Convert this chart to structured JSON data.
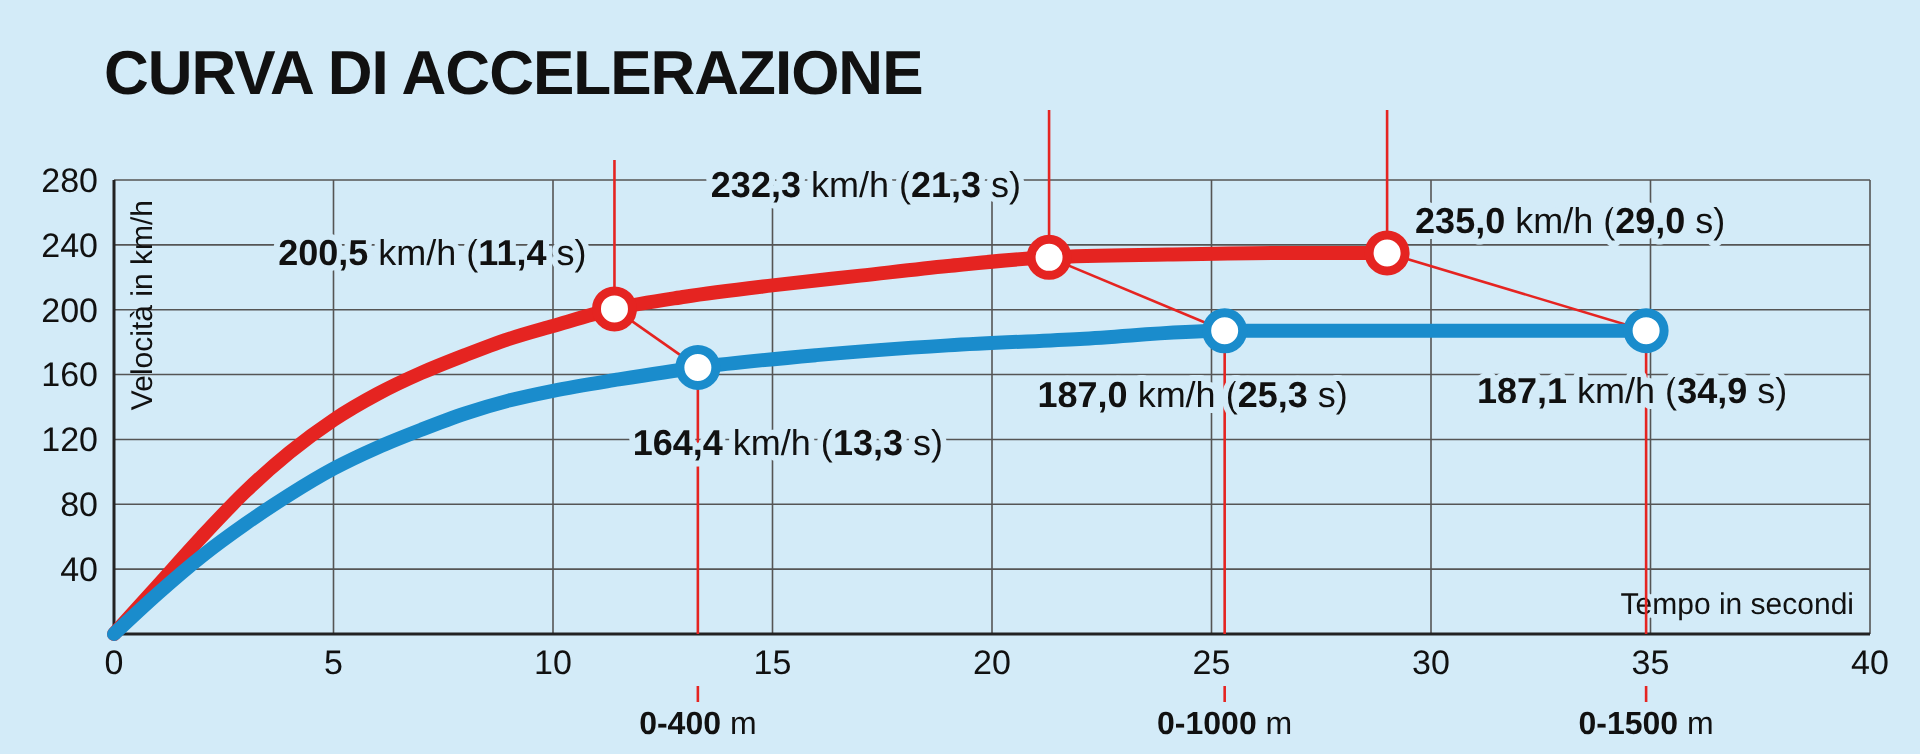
{
  "chart_data": {
    "type": "line",
    "title": "CURVA DI ACCELERAZIONE",
    "xlabel": "Tempo in secondi",
    "ylabel": "Velocità in km/h",
    "xlim": [
      0,
      40
    ],
    "xticks": [
      0,
      5,
      10,
      15,
      20,
      25,
      30,
      35,
      40
    ],
    "ylim": [
      0,
      280
    ],
    "yticks": [
      40,
      80,
      120,
      160,
      200,
      240,
      280
    ],
    "grid": true,
    "line_style": "solid",
    "series": [
      {
        "type": "line",
        "color": "#e52421",
        "x": [
          0,
          1,
          2,
          3,
          4,
          5,
          6,
          7,
          8,
          9,
          10,
          11.4,
          13,
          15,
          17,
          19,
          21.3,
          24,
          27,
          29
        ],
        "values": [
          0,
          30,
          60,
          88,
          112,
          132,
          148,
          161,
          172,
          182,
          190,
          200.5,
          208,
          215,
          221,
          227,
          232.3,
          234,
          235,
          235
        ]
      },
      {
        "type": "line",
        "color": "#1a8ccc",
        "x": [
          0,
          1,
          2,
          3,
          4,
          5,
          6,
          7,
          8,
          9,
          10,
          11.5,
          13.3,
          16,
          19,
          22,
          25.3,
          30,
          34.9
        ],
        "values": [
          0,
          25,
          48,
          68,
          86,
          102,
          115,
          126,
          136,
          144,
          150,
          157,
          164.4,
          172,
          178,
          182,
          187,
          187,
          187.1
        ]
      },
      {
        "type": "scatter",
        "marker": "circle",
        "color": "#e52421",
        "x": [
          11.4,
          21.3,
          29
        ],
        "values": [
          200.5,
          232.3,
          235
        ]
      },
      {
        "type": "scatter",
        "marker": "circle",
        "color": "#1a8ccc",
        "x": [
          13.3,
          25.3,
          34.9
        ],
        "values": [
          164.4,
          187,
          187.1
        ]
      }
    ],
    "annotations": [
      {
        "text": "200,5 km/h (11,4 s)",
        "x": 11.4,
        "y": 200.5
      },
      {
        "text": "232,3 km/h (21,3 s)",
        "x": 21.3,
        "y": 232.3
      },
      {
        "text": "235,0 km/h (29,0 s)",
        "x": 29,
        "y": 235
      },
      {
        "text": "164,4 km/h (13,3 s)",
        "x": 13.3,
        "y": 164.4
      },
      {
        "text": "187,0 km/h (25,3 s)",
        "x": 25.3,
        "y": 187
      },
      {
        "text": "187,1 km/h (34,9 s)",
        "x": 34.9,
        "y": 187.1
      }
    ],
    "ref_lines": [
      {
        "axis": "x",
        "value": 13.3,
        "label": "0-400 m",
        "color": "#e52421"
      },
      {
        "axis": "x",
        "value": 25.3,
        "label": "0-1000 m",
        "color": "#e52421"
      },
      {
        "axis": "x",
        "value": 34.9,
        "label": "0-1500 m",
        "color": "#e52421"
      }
    ]
  }
}
